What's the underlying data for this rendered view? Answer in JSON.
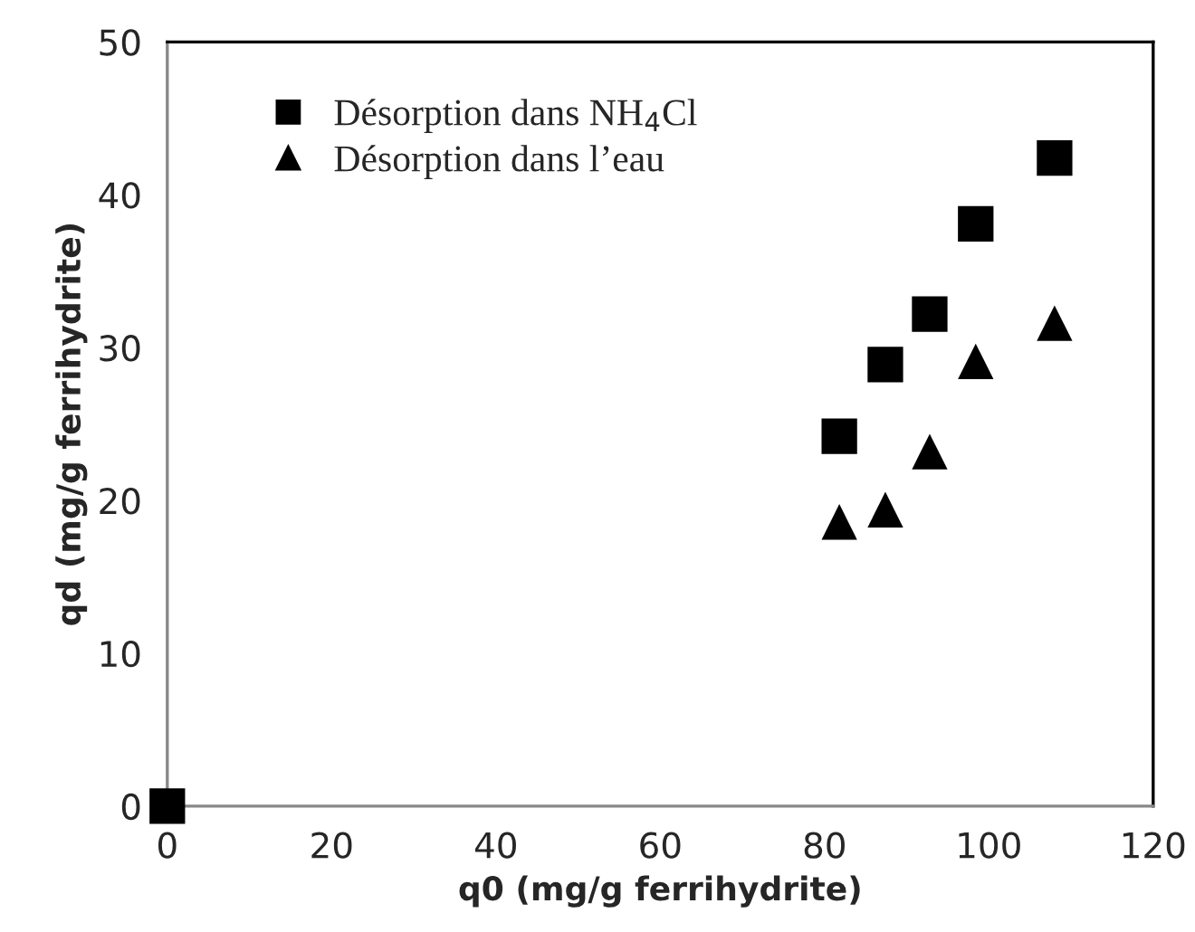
{
  "chart_data": {
    "type": "scatter",
    "xlabel": "q0 (mg/g ferrihydrite)",
    "ylabel": "qd (mg/g ferrihydrite)",
    "series": [
      {
        "name": "Désorption dans NH$_{4}$Cl",
        "color": "#000000",
        "marker": "square",
        "x": [
          0,
          81.8,
          87.4,
          92.8,
          98.4,
          108.0
        ],
        "values": [
          0,
          24.2,
          28.9,
          32.2,
          38.1,
          42.4
        ]
      },
      {
        "name": "Désorption dans l’eau",
        "color": "#000000",
        "marker": "triangle",
        "x": [
          81.8,
          87.4,
          92.8,
          98.4,
          108.0
        ],
        "values": [
          18.6,
          19.4,
          23.2,
          29.1,
          31.6
        ]
      }
    ],
    "xlim": [
      0,
      120
    ],
    "xticks": [
      0,
      20,
      40,
      60,
      80,
      100,
      120
    ],
    "ylim": [
      0,
      50
    ],
    "yticks": [
      0,
      10,
      20,
      30,
      40,
      50
    ],
    "grid": false,
    "legend": "top left"
  }
}
